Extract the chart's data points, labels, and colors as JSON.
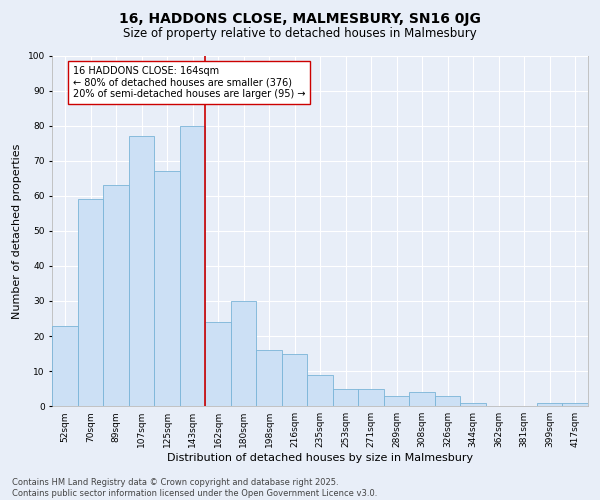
{
  "title": "16, HADDONS CLOSE, MALMESBURY, SN16 0JG",
  "subtitle": "Size of property relative to detached houses in Malmesbury",
  "xlabel": "Distribution of detached houses by size in Malmesbury",
  "ylabel": "Number of detached properties",
  "categories": [
    "52sqm",
    "70sqm",
    "89sqm",
    "107sqm",
    "125sqm",
    "143sqm",
    "162sqm",
    "180sqm",
    "198sqm",
    "216sqm",
    "235sqm",
    "253sqm",
    "271sqm",
    "289sqm",
    "308sqm",
    "326sqm",
    "344sqm",
    "362sqm",
    "381sqm",
    "399sqm",
    "417sqm"
  ],
  "values": [
    23,
    59,
    63,
    77,
    67,
    80,
    24,
    30,
    16,
    15,
    9,
    5,
    5,
    3,
    4,
    3,
    1,
    0,
    0,
    1,
    1
  ],
  "bar_color": "#cce0f5",
  "bar_edge_color": "#7ab4d8",
  "vline_color": "#cc0000",
  "annotation_text": "16 HADDONS CLOSE: 164sqm\n← 80% of detached houses are smaller (376)\n20% of semi-detached houses are larger (95) →",
  "annotation_box_facecolor": "#ffffff",
  "annotation_box_edgecolor": "#cc0000",
  "ylim": [
    0,
    100
  ],
  "yticks": [
    0,
    10,
    20,
    30,
    40,
    50,
    60,
    70,
    80,
    90,
    100
  ],
  "background_color": "#e8eef8",
  "plot_bg_color": "#e8eef8",
  "grid_color": "#ffffff",
  "footer": "Contains HM Land Registry data © Crown copyright and database right 2025.\nContains public sector information licensed under the Open Government Licence v3.0.",
  "title_fontsize": 10,
  "subtitle_fontsize": 8.5,
  "xlabel_fontsize": 8,
  "ylabel_fontsize": 8,
  "tick_fontsize": 6.5,
  "annotation_fontsize": 7,
  "footer_fontsize": 6
}
